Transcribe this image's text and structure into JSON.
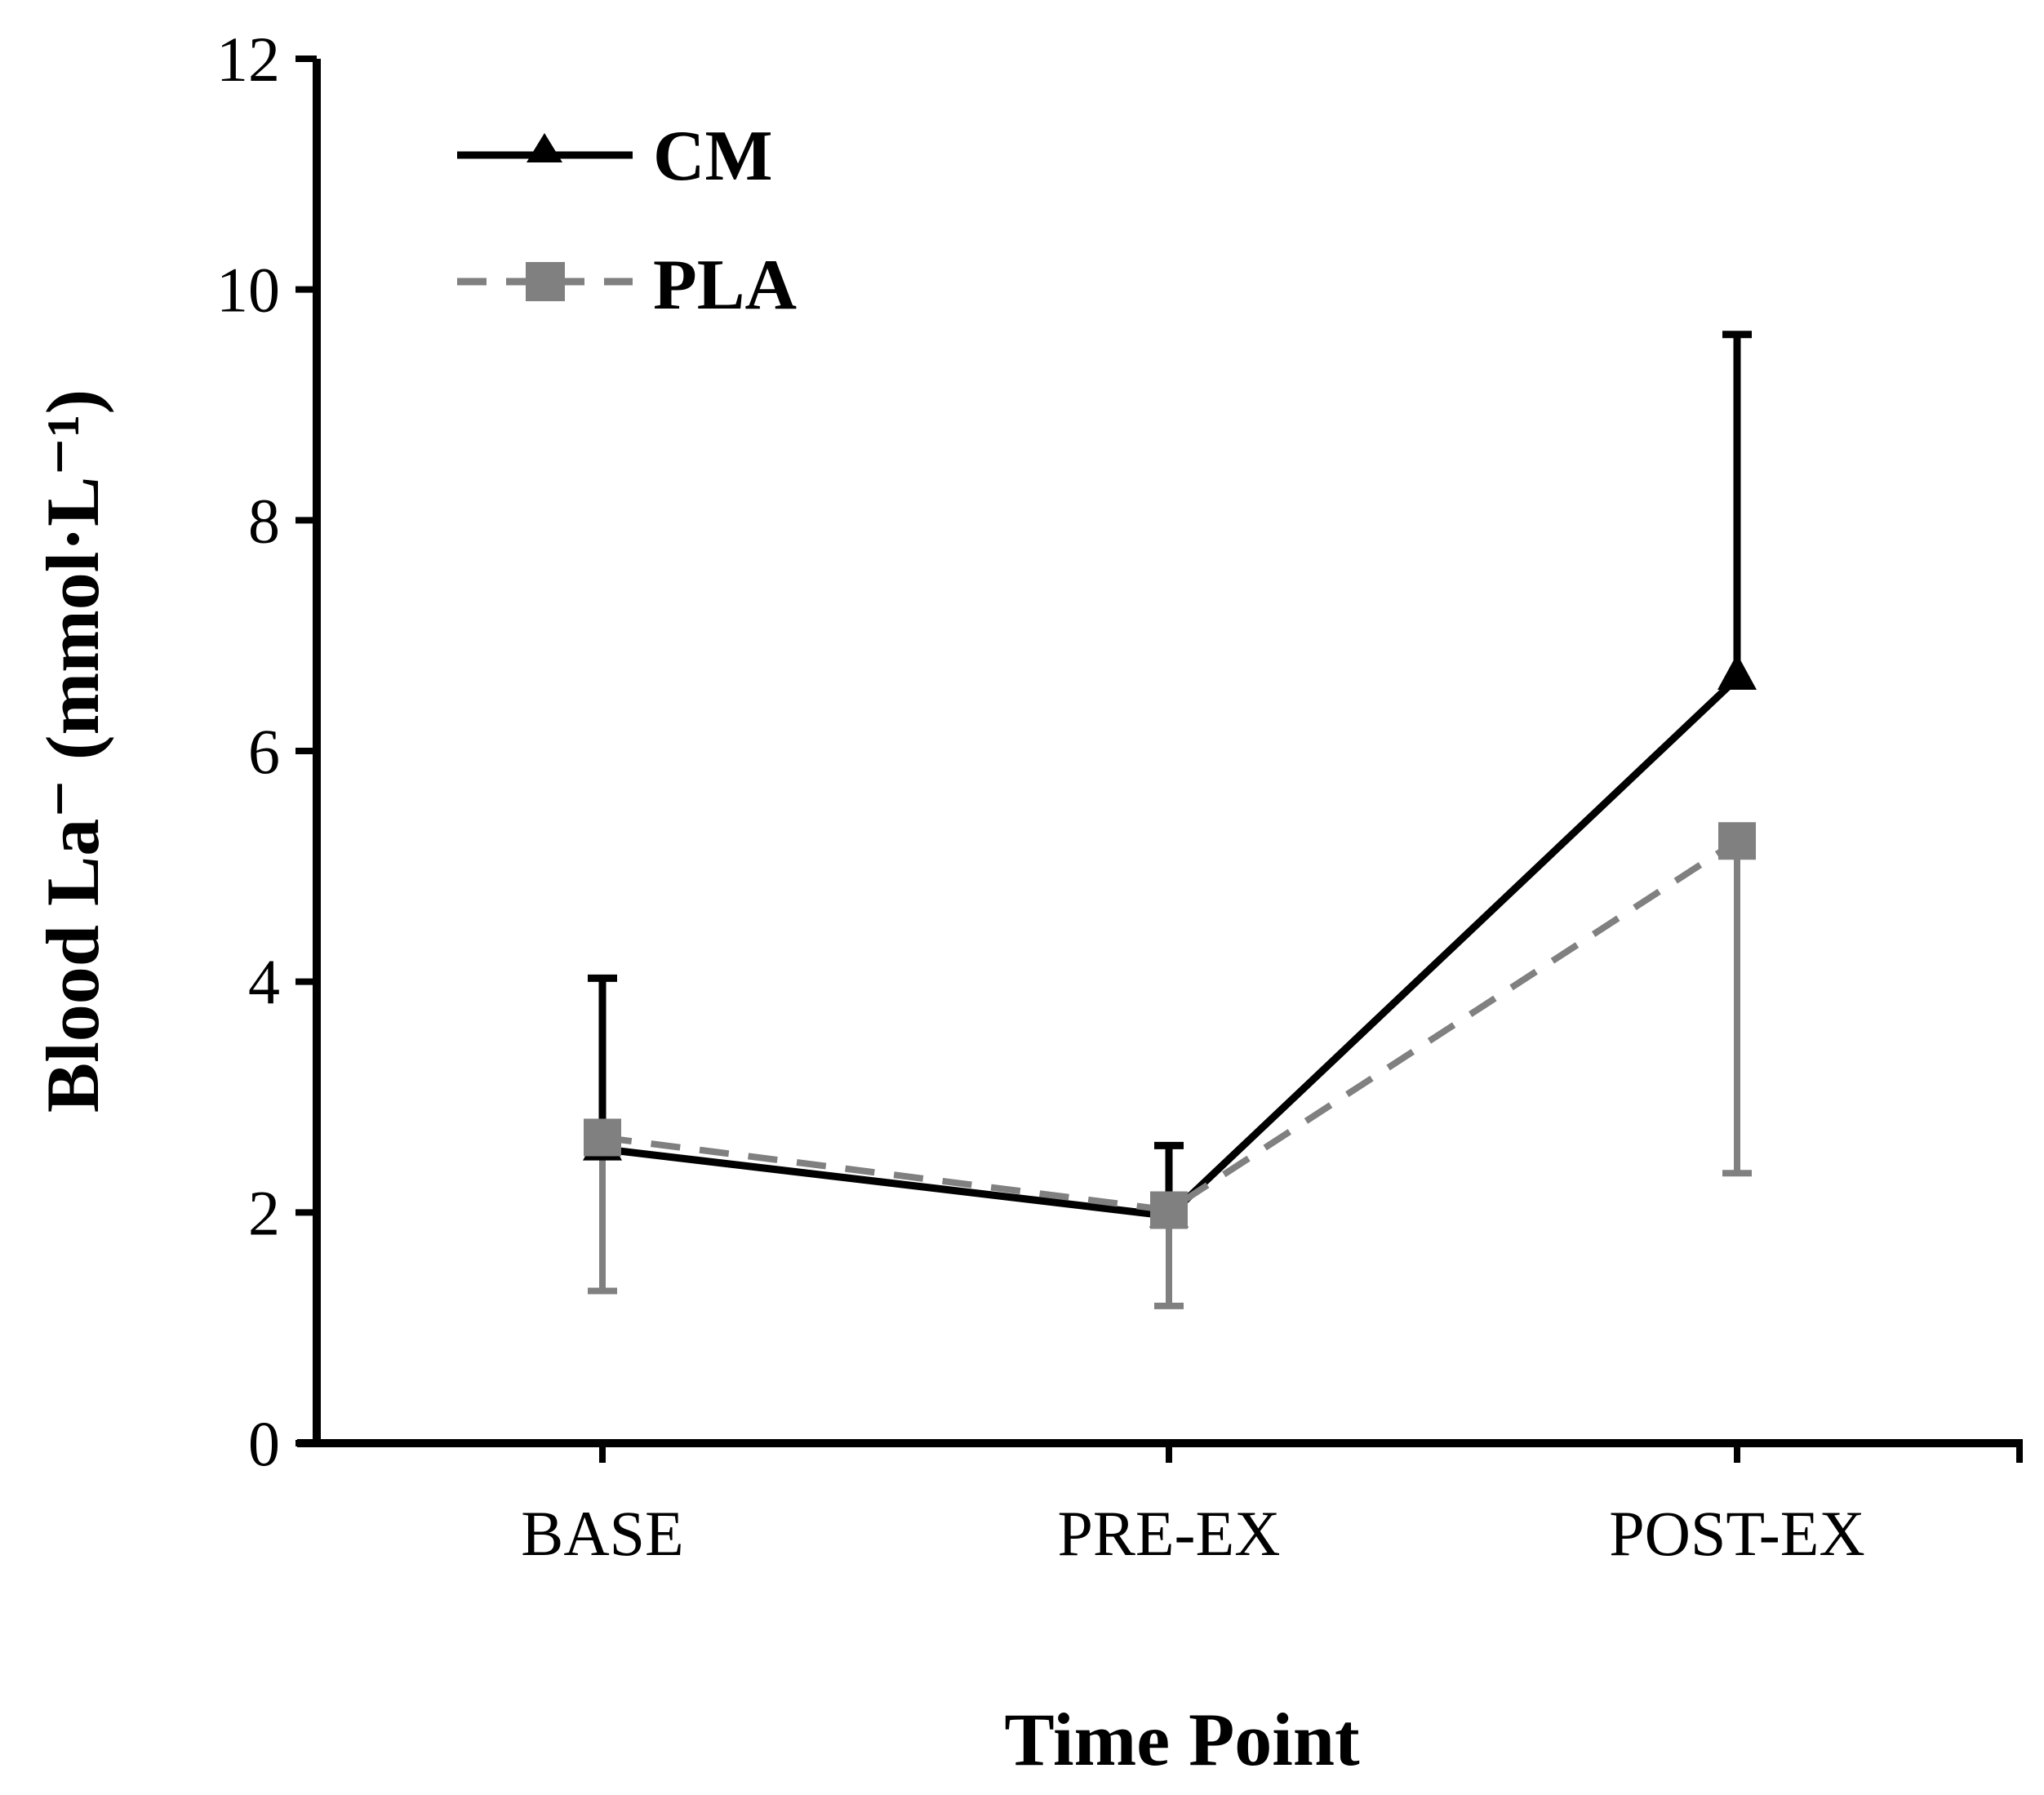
{
  "chart_data": {
    "type": "line",
    "title": "",
    "xlabel": "Time Point",
    "ylabel": "Blood La⁻ (mmol·L⁻¹)",
    "categories": [
      "BASE",
      "PRE-EX",
      "POST-EX"
    ],
    "ylim": [
      0,
      12
    ],
    "yticks": [
      0,
      2,
      4,
      6,
      8,
      10,
      12
    ],
    "grid": false,
    "legend_position": "top-left",
    "series": [
      {
        "name": "CM",
        "values": [
          2.55,
          1.97,
          6.63
        ],
        "error_upper": [
          4.03,
          2.58,
          9.61
        ],
        "color": "#000000",
        "marker": "triangle",
        "line_style": "solid"
      },
      {
        "name": "PLA",
        "values": [
          2.65,
          2.02,
          5.22
        ],
        "error_lower": [
          1.32,
          1.19,
          2.34
        ],
        "color": "#808080",
        "marker": "square",
        "line_style": "dashed"
      }
    ]
  }
}
